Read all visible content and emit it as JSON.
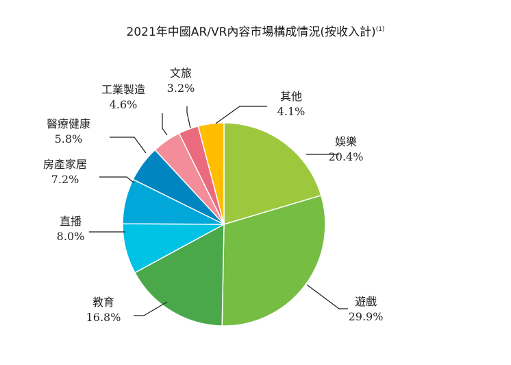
{
  "chart_data": {
    "type": "pie",
    "title": "2021年中國AR/VR內容市場構成情況(按收入計)",
    "title_note": "(1)",
    "value_suffix": "%",
    "start_angle": "12 o'clock",
    "direction": "clockwise",
    "slices": [
      {
        "label": "娛樂",
        "value": 20.4,
        "value_label": "20.4%",
        "color": "#9dc83d"
      },
      {
        "label": "遊戲",
        "value": 29.9,
        "value_label": "29.9%",
        "color": "#76bd43"
      },
      {
        "label": "教育",
        "value": 16.8,
        "value_label": "16.8%",
        "color": "#4aa84a"
      },
      {
        "label": "直播",
        "value": 8.0,
        "value_label": "8.0%",
        "color": "#00c2e4"
      },
      {
        "label": "房產家居",
        "value": 7.2,
        "value_label": "7.2%",
        "color": "#00a7d8"
      },
      {
        "label": "醫療健康",
        "value": 5.8,
        "value_label": "5.8%",
        "color": "#0085c0"
      },
      {
        "label": "工業製造",
        "value": 4.6,
        "value_label": "4.6%",
        "color": "#f28d99"
      },
      {
        "label": "文旅",
        "value": 3.2,
        "value_label": "3.2%",
        "color": "#ea6a7e"
      },
      {
        "label": "其他",
        "value": 4.1,
        "value_label": "4.1%",
        "color": "#ffbd00"
      }
    ]
  }
}
